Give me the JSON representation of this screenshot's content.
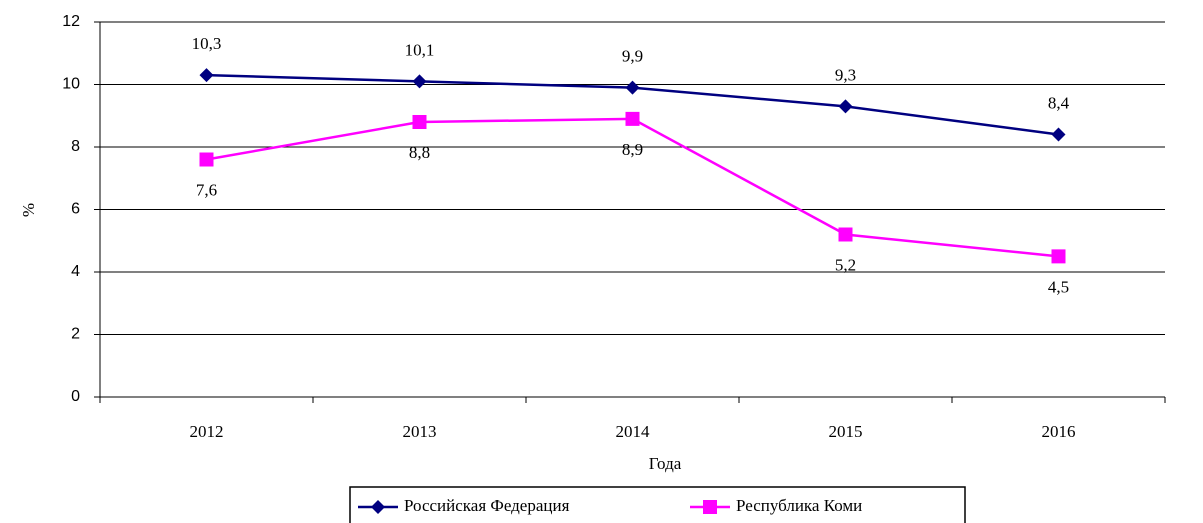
{
  "chart_data": {
    "type": "line",
    "x_label": "Года",
    "y_label": "%",
    "categories": [
      "2012",
      "2013",
      "2014",
      "2015",
      "2016"
    ],
    "series": [
      {
        "name": "Российская Федерация",
        "color": "#000080",
        "marker": "diamond",
        "values": [
          10.3,
          10.1,
          9.9,
          9.3,
          8.4
        ],
        "value_labels": [
          "10,3",
          "10,1",
          "9,9",
          "9,3",
          "8,4"
        ]
      },
      {
        "name": "Республика Коми",
        "color": "#ff00ff",
        "marker": "square",
        "values": [
          7.6,
          8.8,
          8.9,
          5.2,
          4.5
        ],
        "value_labels": [
          "7,6",
          "8,8",
          "8,9",
          "5,2",
          "4,5"
        ]
      }
    ],
    "ylim": [
      0,
      12
    ],
    "yticks": [
      0,
      2,
      4,
      6,
      8,
      10,
      12
    ],
    "grid": true,
    "legend": "bottom"
  }
}
